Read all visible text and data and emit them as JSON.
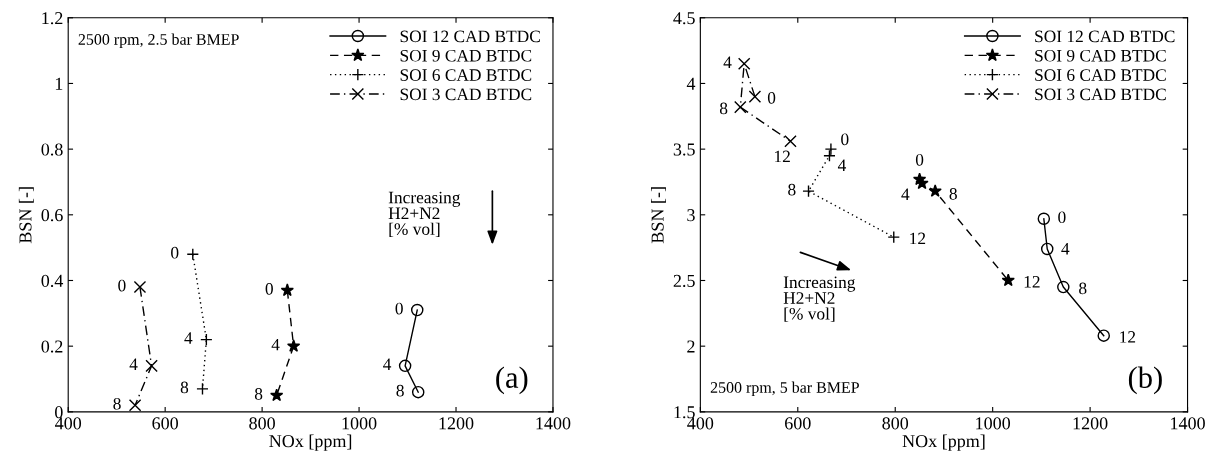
{
  "chart_data": [
    {
      "type": "line",
      "xlabel": "NOx [ppm]",
      "ylabel": "BSN [-]",
      "xlim": [
        400,
        1400
      ],
      "ylim": [
        0,
        1.2
      ],
      "xticks": [
        400,
        600,
        800,
        1000,
        1200,
        1400
      ],
      "yticks": [
        0,
        0.2,
        0.4,
        0.6,
        0.8,
        1,
        1.2
      ],
      "grid": false,
      "legend": "top right",
      "series": [
        {
          "name": "SOI 12 CAD BTDC",
          "color": "#000000",
          "marker": "circle",
          "line_style": "solid",
          "x": [
            1120,
            1095,
            1122
          ],
          "values": [
            0.31,
            0.14,
            0.06
          ]
        },
        {
          "name": "SOI 9 CAD BTDC",
          "color": "#000000",
          "marker": "star",
          "line_style": "dashed",
          "x": [
            852,
            865,
            830
          ],
          "values": [
            0.37,
            0.2,
            0.05
          ]
        },
        {
          "name": "SOI 6 CAD BTDC",
          "color": "#000000",
          "marker": "plus",
          "line_style": "dotted",
          "x": [
            657,
            685,
            677
          ],
          "values": [
            0.48,
            0.22,
            0.07
          ]
        },
        {
          "name": "SOI 3 CAD BTDC",
          "color": "#000000",
          "marker": "cross",
          "line_style": "dashdot",
          "x": [
            548,
            572,
            538
          ],
          "values": [
            0.38,
            0.14,
            0.02
          ]
        }
      ],
      "annotations": [
        "2500 rpm, 2.5 bar BMEP",
        "(a)",
        "Increasing\nH2+N2\n[% vol]",
        {
          "text": "0",
          "x": 1120,
          "y": 0.31
        },
        {
          "text": "4",
          "x": 1095,
          "y": 0.14
        },
        {
          "text": "8",
          "x": 1122,
          "y": 0.06
        },
        {
          "text": "0",
          "x": 852,
          "y": 0.37
        },
        {
          "text": "4",
          "x": 865,
          "y": 0.2
        },
        {
          "text": "8",
          "x": 830,
          "y": 0.05
        },
        {
          "text": "0",
          "x": 657,
          "y": 0.48
        },
        {
          "text": "4",
          "x": 685,
          "y": 0.22
        },
        {
          "text": "8",
          "x": 677,
          "y": 0.07
        },
        {
          "text": "0",
          "x": 548,
          "y": 0.38
        },
        {
          "text": "4",
          "x": 572,
          "y": 0.14
        },
        {
          "text": "8",
          "x": 538,
          "y": 0.02
        }
      ]
    },
    {
      "type": "line",
      "xlabel": "NOx [ppm]",
      "ylabel": "BSN [-]",
      "xlim": [
        400,
        1400
      ],
      "ylim": [
        1.5,
        4.5
      ],
      "xticks": [
        400,
        600,
        800,
        1000,
        1200,
        1400
      ],
      "yticks": [
        1.5,
        2,
        2.5,
        3,
        3.5,
        4,
        4.5
      ],
      "grid": false,
      "legend": "top right",
      "series": [
        {
          "name": "SOI 12 CAD BTDC",
          "color": "#000000",
          "marker": "circle",
          "line_style": "solid",
          "x": [
            1105,
            1112,
            1145,
            1228
          ],
          "values": [
            2.97,
            2.74,
            2.45,
            2.08
          ]
        },
        {
          "name": "SOI 9 CAD BTDC",
          "color": "#000000",
          "marker": "star",
          "line_style": "dashed",
          "x": [
            850,
            855,
            882,
            1032
          ],
          "values": [
            3.27,
            3.24,
            3.18,
            2.5
          ]
        },
        {
          "name": "SOI 6 CAD BTDC",
          "color": "#000000",
          "marker": "plus",
          "line_style": "dotted",
          "x": [
            668,
            665,
            622,
            797
          ],
          "values": [
            3.5,
            3.45,
            3.18,
            2.83
          ]
        },
        {
          "name": "SOI 3 CAD BTDC",
          "color": "#000000",
          "marker": "cross",
          "line_style": "dashdot",
          "x": [
            512,
            490,
            482,
            585
          ],
          "values": [
            3.9,
            4.15,
            3.82,
            3.56
          ]
        }
      ],
      "annotations": [
        "2500 rpm, 5 bar BMEP",
        "(b)",
        "Increasing\nH2+N2\n[% vol]",
        {
          "text": "0",
          "x": 1105,
          "y": 2.97
        },
        {
          "text": "4",
          "x": 1112,
          "y": 2.74
        },
        {
          "text": "8",
          "x": 1145,
          "y": 2.45
        },
        {
          "text": "12",
          "x": 1228,
          "y": 2.08
        },
        {
          "text": "0",
          "x": 850,
          "y": 3.27
        },
        {
          "text": "4",
          "x": 855,
          "y": 3.24
        },
        {
          "text": "8",
          "x": 882,
          "y": 3.18
        },
        {
          "text": "12",
          "x": 1032,
          "y": 2.5
        },
        {
          "text": "0",
          "x": 668,
          "y": 3.5
        },
        {
          "text": "4",
          "x": 665,
          "y": 3.45
        },
        {
          "text": "8",
          "x": 622,
          "y": 3.18
        },
        {
          "text": "12",
          "x": 797,
          "y": 2.83
        },
        {
          "text": "0",
          "x": 512,
          "y": 3.9
        },
        {
          "text": "4",
          "x": 490,
          "y": 4.15
        },
        {
          "text": "8",
          "x": 482,
          "y": 3.82
        },
        {
          "text": "12",
          "x": 585,
          "y": 3.56
        }
      ]
    }
  ]
}
